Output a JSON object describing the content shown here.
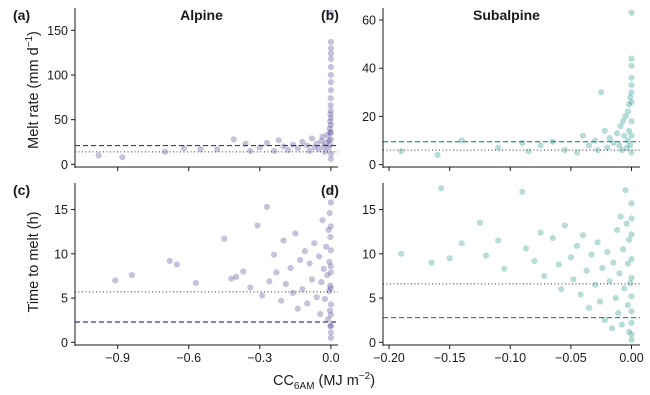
{
  "figure": {
    "ylabel_top": "Melt rate (mm d",
    "ylabel_top_sup": "−1",
    "ylabel_top_end": ")",
    "ylabel_bottom": "Time to melt (h)",
    "xlabel_main": "CC",
    "xlabel_sub": "6AM",
    "xlabel_rest": " (MJ m",
    "xlabel_sup": "−2",
    "xlabel_end": ")"
  },
  "colors": {
    "alpine": "#3f3488",
    "subalpine": "#0f8c86"
  },
  "chart_data": [
    {
      "panel": "(a)",
      "title": "Alpine",
      "type": "scatter",
      "xlim": [
        -1.08,
        0.03
      ],
      "ylim": [
        -3,
        175
      ],
      "xticks": [
        -0.9,
        -0.6,
        -0.3,
        0.0
      ],
      "xticklabels": [
        "",
        "",
        "",
        ""
      ],
      "yticks": [
        0,
        50,
        100,
        150
      ],
      "yticklabels": [
        "0",
        "50",
        "100",
        "150"
      ],
      "hlines": [
        {
          "style": "dashed",
          "y": 21
        },
        {
          "style": "dotted",
          "y": 14
        }
      ],
      "points": [
        [
          -0.98,
          10
        ],
        [
          -0.88,
          8
        ],
        [
          -0.7,
          14
        ],
        [
          -0.62,
          18
        ],
        [
          -0.55,
          17
        ],
        [
          -0.48,
          17
        ],
        [
          -0.41,
          28
        ],
        [
          -0.36,
          23
        ],
        [
          -0.34,
          15
        ],
        [
          -0.3,
          19
        ],
        [
          -0.27,
          24
        ],
        [
          -0.24,
          15
        ],
        [
          -0.22,
          27
        ],
        [
          -0.2,
          20
        ],
        [
          -0.18,
          16
        ],
        [
          -0.16,
          22
        ],
        [
          -0.14,
          18
        ],
        [
          -0.12,
          25
        ],
        [
          -0.1,
          21
        ],
        [
          -0.09,
          15
        ],
        [
          -0.08,
          29
        ],
        [
          -0.07,
          19
        ],
        [
          -0.06,
          23
        ],
        [
          -0.05,
          17
        ],
        [
          -0.04,
          26
        ],
        [
          -0.035,
          31
        ],
        [
          -0.03,
          20
        ],
        [
          -0.025,
          14
        ],
        [
          -0.02,
          24
        ],
        [
          -0.015,
          33
        ],
        [
          -0.01,
          18
        ],
        [
          -0.008,
          27
        ],
        [
          -0.005,
          40
        ],
        [
          -0.004,
          22
        ],
        [
          -0.003,
          48
        ],
        [
          -0.002,
          35
        ],
        [
          -0.002,
          56
        ],
        [
          -0.001,
          66
        ],
        [
          -0.001,
          74
        ],
        [
          0.0,
          83
        ],
        [
          0.0,
          92
        ],
        [
          0.0,
          100
        ],
        [
          0.0,
          109
        ],
        [
          0.0,
          118
        ],
        [
          0.0,
          124
        ],
        [
          0.0,
          130
        ],
        [
          0.0,
          137
        ],
        [
          0.0,
          170
        ],
        [
          0.0,
          60
        ],
        [
          0.0,
          52
        ],
        [
          0.0,
          44
        ],
        [
          0.0,
          36
        ],
        [
          0.0,
          28
        ],
        [
          0.0,
          12
        ],
        [
          0.0,
          6
        ]
      ]
    },
    {
      "panel": "(b)",
      "title": "Subalpine",
      "type": "scatter",
      "xlim": [
        -0.205,
        0.007
      ],
      "ylim": [
        -1,
        65
      ],
      "xticks": [
        -0.2,
        -0.15,
        -0.1,
        -0.05,
        0.0
      ],
      "xticklabels": [
        "",
        "",
        "",
        "",
        ""
      ],
      "yticks": [
        0,
        20,
        40,
        60
      ],
      "yticklabels": [
        "0",
        "20",
        "40",
        "60"
      ],
      "hlines": [
        {
          "style": "dashed",
          "y": 9.5
        },
        {
          "style": "dotted",
          "y": 6
        }
      ],
      "points": [
        [
          -0.19,
          5.5
        ],
        [
          -0.16,
          4
        ],
        [
          -0.14,
          10
        ],
        [
          -0.11,
          7
        ],
        [
          -0.09,
          9
        ],
        [
          -0.085,
          5.5
        ],
        [
          -0.075,
          8
        ],
        [
          -0.065,
          9.5
        ],
        [
          -0.055,
          6
        ],
        [
          -0.045,
          5
        ],
        [
          -0.04,
          12
        ],
        [
          -0.035,
          8
        ],
        [
          -0.03,
          10
        ],
        [
          -0.028,
          6
        ],
        [
          -0.025,
          30
        ],
        [
          -0.022,
          14
        ],
        [
          -0.02,
          7
        ],
        [
          -0.018,
          11
        ],
        [
          -0.015,
          9
        ],
        [
          -0.012,
          13
        ],
        [
          -0.01,
          8
        ],
        [
          -0.009,
          16
        ],
        [
          -0.008,
          6
        ],
        [
          -0.007,
          18
        ],
        [
          -0.006,
          12
        ],
        [
          -0.005,
          20
        ],
        [
          -0.004,
          7
        ],
        [
          -0.003,
          22
        ],
        [
          -0.003,
          10
        ],
        [
          -0.002,
          25
        ],
        [
          -0.002,
          14
        ],
        [
          -0.001,
          28
        ],
        [
          -0.001,
          8
        ],
        [
          0.0,
          30
        ],
        [
          0.0,
          33
        ],
        [
          0.0,
          36
        ],
        [
          0.0,
          41
        ],
        [
          0.0,
          44
        ],
        [
          0.0,
          63
        ],
        [
          0.0,
          26
        ],
        [
          0.0,
          18
        ],
        [
          0.0,
          12
        ],
        [
          0.0,
          5
        ]
      ]
    },
    {
      "panel": "(c)",
      "title": "",
      "type": "scatter",
      "xlim": [
        -1.08,
        0.03
      ],
      "ylim": [
        -0.3,
        18
      ],
      "xticks": [
        -0.9,
        -0.6,
        -0.3,
        0.0
      ],
      "xticklabels": [
        "−0.9",
        "−0.6",
        "−0.3",
        "0.0"
      ],
      "yticks": [
        0,
        5,
        10,
        15
      ],
      "yticklabels": [
        "0",
        "5",
        "10",
        "15"
      ],
      "hlines": [
        {
          "style": "dashed",
          "y": 2.3
        },
        {
          "style": "dotted",
          "y": 5.7
        }
      ],
      "points": [
        [
          -0.91,
          7.0
        ],
        [
          -0.84,
          7.6
        ],
        [
          -0.68,
          9.2
        ],
        [
          -0.65,
          8.8
        ],
        [
          -0.57,
          6.7
        ],
        [
          -0.45,
          11.7
        ],
        [
          -0.42,
          7.2
        ],
        [
          -0.4,
          7.4
        ],
        [
          -0.37,
          8.0
        ],
        [
          -0.34,
          6.2
        ],
        [
          -0.31,
          13.2
        ],
        [
          -0.29,
          5.3
        ],
        [
          -0.27,
          15.3
        ],
        [
          -0.26,
          6.9
        ],
        [
          -0.24,
          9.9
        ],
        [
          -0.23,
          7.9
        ],
        [
          -0.21,
          4.7
        ],
        [
          -0.2,
          11.5
        ],
        [
          -0.19,
          6.6
        ],
        [
          -0.17,
          8.4
        ],
        [
          -0.16,
          5.6
        ],
        [
          -0.15,
          12.3
        ],
        [
          -0.14,
          3.8
        ],
        [
          -0.13,
          9.3
        ],
        [
          -0.12,
          6.0
        ],
        [
          -0.11,
          10.3
        ],
        [
          -0.1,
          4.4
        ],
        [
          -0.09,
          8.9
        ],
        [
          -0.08,
          7.1
        ],
        [
          -0.07,
          11.2
        ],
        [
          -0.06,
          5.1
        ],
        [
          -0.05,
          9.7
        ],
        [
          -0.045,
          3.2
        ],
        [
          -0.04,
          6.8
        ],
        [
          -0.035,
          13.8
        ],
        [
          -0.03,
          8.3
        ],
        [
          -0.025,
          4.9
        ],
        [
          -0.02,
          10.8
        ],
        [
          -0.015,
          7.6
        ],
        [
          -0.012,
          2.6
        ],
        [
          -0.01,
          12.7
        ],
        [
          -0.008,
          5.8
        ],
        [
          -0.006,
          9.1
        ],
        [
          -0.005,
          14.6
        ],
        [
          -0.004,
          3.6
        ],
        [
          -0.003,
          6.4
        ],
        [
          -0.002,
          11.9
        ],
        [
          -0.002,
          1.8
        ],
        [
          -0.001,
          8.6
        ],
        [
          0.0,
          17.2
        ],
        [
          0.0,
          15.8
        ],
        [
          0.0,
          13.1
        ],
        [
          0.0,
          10.4
        ],
        [
          0.0,
          7.9
        ],
        [
          0.0,
          6.1
        ],
        [
          0.0,
          4.3
        ],
        [
          0.0,
          3.1
        ],
        [
          0.0,
          1.9
        ],
        [
          0.0,
          1.1
        ],
        [
          0.0,
          0.5
        ]
      ]
    },
    {
      "panel": "(d)",
      "title": "",
      "type": "scatter",
      "xlim": [
        -0.205,
        0.007
      ],
      "ylim": [
        -0.3,
        18
      ],
      "xticks": [
        -0.2,
        -0.15,
        -0.1,
        -0.05,
        0.0
      ],
      "xticklabels": [
        "−0.20",
        "−0.15",
        "−0.10",
        "−0.05",
        "0.00"
      ],
      "yticks": [
        0,
        5,
        10,
        15
      ],
      "yticklabels": [
        "0",
        "5",
        "10",
        "15"
      ],
      "hlines": [
        {
          "style": "dashed",
          "y": 2.8
        },
        {
          "style": "dotted",
          "y": 6.6
        }
      ],
      "points": [
        [
          -0.19,
          10.0
        ],
        [
          -0.165,
          9.0
        ],
        [
          -0.157,
          17.4
        ],
        [
          -0.15,
          9.5
        ],
        [
          -0.14,
          11.2
        ],
        [
          -0.125,
          13.5
        ],
        [
          -0.12,
          9.8
        ],
        [
          -0.11,
          11.5
        ],
        [
          -0.105,
          8.3
        ],
        [
          -0.09,
          17.0
        ],
        [
          -0.087,
          10.6
        ],
        [
          -0.08,
          9.2
        ],
        [
          -0.075,
          12.4
        ],
        [
          -0.072,
          7.5
        ],
        [
          -0.065,
          11.8
        ],
        [
          -0.06,
          8.8
        ],
        [
          -0.058,
          6.0
        ],
        [
          -0.055,
          13.2
        ],
        [
          -0.05,
          9.6
        ],
        [
          -0.048,
          7.1
        ],
        [
          -0.045,
          10.9
        ],
        [
          -0.042,
          5.4
        ],
        [
          -0.04,
          12.1
        ],
        [
          -0.037,
          8.1
        ],
        [
          -0.035,
          3.9
        ],
        [
          -0.033,
          9.9
        ],
        [
          -0.03,
          6.5
        ],
        [
          -0.028,
          11.3
        ],
        [
          -0.026,
          4.6
        ],
        [
          -0.024,
          8.4
        ],
        [
          -0.022,
          2.5
        ],
        [
          -0.02,
          10.2
        ],
        [
          -0.018,
          6.9
        ],
        [
          -0.016,
          1.6
        ],
        [
          -0.015,
          9.0
        ],
        [
          -0.013,
          5.0
        ],
        [
          -0.012,
          12.7
        ],
        [
          -0.011,
          3.3
        ],
        [
          -0.01,
          7.8
        ],
        [
          -0.009,
          14.2
        ],
        [
          -0.008,
          2.0
        ],
        [
          -0.007,
          10.5
        ],
        [
          -0.006,
          6.1
        ],
        [
          -0.005,
          17.2
        ],
        [
          -0.004,
          13.4
        ],
        [
          -0.003,
          4.2
        ],
        [
          -0.003,
          8.9
        ],
        [
          -0.002,
          11.6
        ],
        [
          -0.002,
          1.2
        ],
        [
          -0.001,
          6.7
        ],
        [
          0.0,
          15.7
        ],
        [
          0.0,
          14.0
        ],
        [
          0.0,
          12.2
        ],
        [
          0.0,
          9.4
        ],
        [
          0.0,
          7.3
        ],
        [
          0.0,
          5.2
        ],
        [
          0.0,
          3.5
        ],
        [
          0.0,
          2.2
        ],
        [
          0.0,
          0.9
        ],
        [
          0.0,
          0.3
        ]
      ]
    }
  ]
}
